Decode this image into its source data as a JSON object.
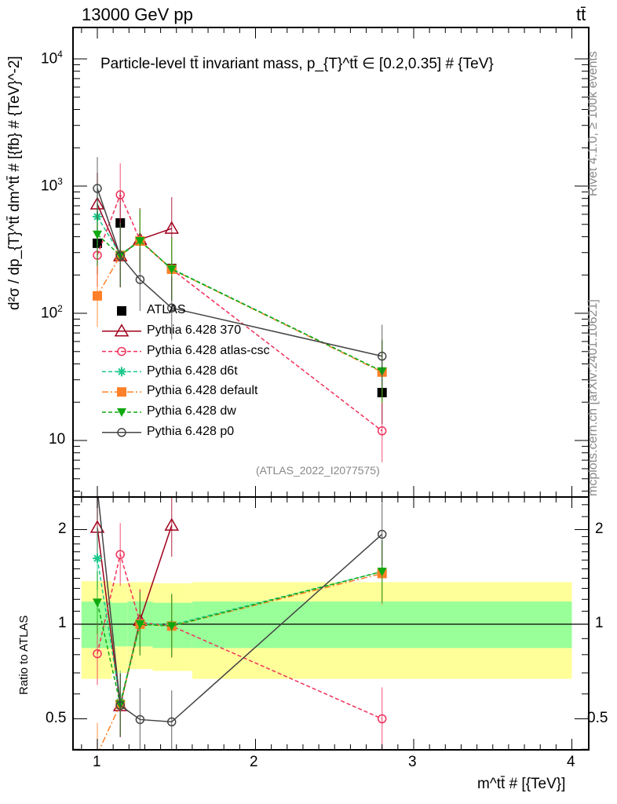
{
  "header": {
    "left": "13000 GeV pp",
    "right": "tt̄"
  },
  "side_labels": {
    "rivet": "Rivet 4.1.0, ≥ 100k events",
    "mcplots": "mcplots.cern.ch [arXiv:2401.10621]"
  },
  "chart_data": {
    "type": "line",
    "title": "Particle-level tt̄ invariant mass, p_{T}^tt̄ ∈ [0.2,0.35] # {TeV}",
    "watermark": "(ATLAS_2022_I2077575)",
    "xlabel": "m^tt̄ # [{TeV}]",
    "ylabel": "d²σ / dp_{T}^tt̄ dm^tt̄ # [{fb} # {TeV}^-2]",
    "ratio_ylabel": "Ratio to ATLAS",
    "xlim": [
      0.85,
      4.1
    ],
    "ylim": [
      3.6,
      17600
    ],
    "yscale": "log",
    "ratio_ylim": [
      0.4,
      2.54
    ],
    "x_ticks": [
      "1",
      "2",
      "3",
      "4"
    ],
    "y_ticks": [
      {
        "base": "10",
        "exp": "4"
      },
      {
        "base": "10",
        "exp": "3"
      },
      {
        "base": "10",
        "exp": "2"
      },
      {
        "base": "10",
        "exp": ""
      }
    ],
    "ratio_ticks": [
      "2",
      "1",
      "0.5"
    ],
    "x": [
      1.0,
      1.145,
      1.27,
      1.47,
      2.8
    ],
    "series": [
      {
        "name": "ATLAS",
        "color": "#000000",
        "marker": "square-filled",
        "line": "none",
        "values": [
          355,
          513,
          370,
          225,
          23.8
        ]
      },
      {
        "name": "Pythia 6.428 370",
        "color": "#a0001c",
        "marker": "triangle-open",
        "line": "solid",
        "values": [
          721,
          282,
          380,
          464,
          null
        ]
      },
      {
        "name": "Pythia 6.428 atlas-csc",
        "color": "#f0305a",
        "marker": "circle-open",
        "line": "dashed",
        "values": [
          286,
          855,
          375,
          222,
          11.9
        ]
      },
      {
        "name": "Pythia 6.428 d6t",
        "color": "#1ec88c",
        "marker": "star",
        "line": "dashed",
        "values": [
          575,
          290,
          372,
          224,
          35
        ]
      },
      {
        "name": "Pythia 6.428 default",
        "color": "#ff8028",
        "marker": "square-filled",
        "line": "dashdot",
        "values": [
          137,
          285,
          370,
          222,
          34.5
        ]
      },
      {
        "name": "Pythia 6.428 dw",
        "color": "#10a810",
        "marker": "triangle-down-filled",
        "line": "dashed",
        "values": [
          416,
          285,
          370,
          222,
          35
        ]
      },
      {
        "name": "Pythia 6.428 p0",
        "color": "#444444",
        "marker": "circle-open",
        "line": "solid",
        "values": [
          958,
          283,
          184,
          110,
          46
        ]
      }
    ],
    "ratio_bands": {
      "edges": [
        0.9,
        1.09,
        1.19,
        1.35,
        1.6,
        4.0
      ],
      "outer_color": "#ffff99",
      "inner_color": "#99ff99",
      "outer_low": [
        0.67,
        0.7,
        0.72,
        0.71,
        0.67
      ],
      "outer_high": [
        1.37,
        1.35,
        1.36,
        1.35,
        1.36
      ],
      "inner_low": [
        0.84,
        0.85,
        0.85,
        0.84,
        0.84
      ],
      "inner_high": [
        1.18,
        1.17,
        1.18,
        1.17,
        1.18
      ]
    }
  }
}
